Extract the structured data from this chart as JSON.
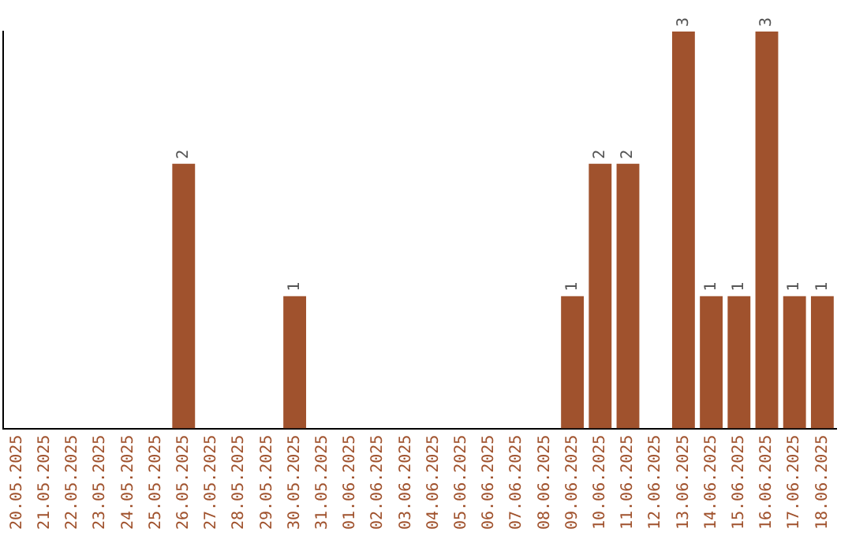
{
  "chart_data": {
    "type": "bar",
    "categories": [
      "20.05.2025",
      "21.05.2025",
      "22.05.2025",
      "23.05.2025",
      "24.05.2025",
      "25.05.2025",
      "26.05.2025",
      "27.05.2025",
      "28.05.2025",
      "29.05.2025",
      "30.05.2025",
      "31.05.2025",
      "01.06.2025",
      "02.06.2025",
      "03.06.2025",
      "04.06.2025",
      "05.06.2025",
      "06.06.2025",
      "07.06.2025",
      "08.06.2025",
      "09.06.2025",
      "10.06.2025",
      "11.06.2025",
      "12.06.2025",
      "13.06.2025",
      "14.06.2025",
      "15.06.2025",
      "16.06.2025",
      "17.06.2025",
      "18.06.2025"
    ],
    "values": [
      0,
      0,
      0,
      0,
      0,
      0,
      2,
      0,
      0,
      0,
      1,
      0,
      0,
      0,
      0,
      0,
      0,
      0,
      0,
      0,
      1,
      2,
      2,
      0,
      3,
      1,
      1,
      3,
      1,
      1
    ],
    "value_labels": [
      null,
      null,
      null,
      null,
      null,
      null,
      "2",
      null,
      null,
      null,
      "1",
      null,
      null,
      null,
      null,
      null,
      null,
      null,
      null,
      null,
      "1",
      "2",
      "2",
      null,
      "3",
      "1",
      "1",
      "3",
      "1",
      "1"
    ],
    "color": "#a0522d",
    "ylim": [
      0,
      3
    ],
    "grid": false,
    "legend": false,
    "tick_labels": "x"
  }
}
